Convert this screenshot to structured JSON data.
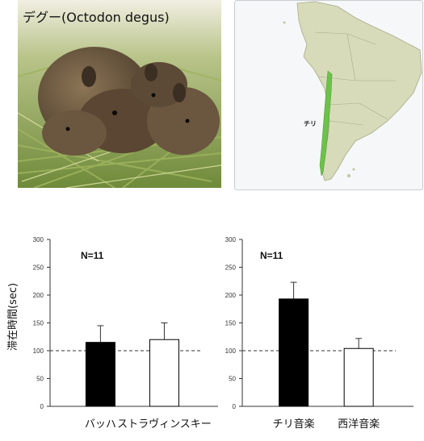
{
  "photo": {
    "title": "デグー(Octodon degus)"
  },
  "map": {
    "region_label": "チリ",
    "colors": {
      "sea": "#f6f7f8",
      "land": "#d8dbb9",
      "chile": "#6cc24a",
      "border": "#a7ab8a"
    }
  },
  "chart_data": [
    {
      "type": "bar",
      "ylabel": "滞在時間(sec)",
      "annotation": "N=11",
      "categories": [
        "バッハ",
        "ストラヴィンスキー"
      ],
      "values": [
        115,
        120
      ],
      "errors": [
        30,
        30
      ],
      "bar_colors": [
        "#000000",
        "#ffffff"
      ],
      "ylim": [
        0,
        300
      ],
      "yticks": [
        0,
        50,
        100,
        150,
        200,
        250,
        300
      ],
      "reference_line": 100
    },
    {
      "type": "bar",
      "annotation": "N=11",
      "categories": [
        "チリ音楽",
        "西洋音楽"
      ],
      "values": [
        193,
        104
      ],
      "errors": [
        30,
        18
      ],
      "bar_colors": [
        "#000000",
        "#ffffff"
      ],
      "ylim": [
        0,
        300
      ],
      "yticks": [
        0,
        50,
        100,
        150,
        200,
        250,
        300
      ],
      "reference_line": 100
    }
  ]
}
